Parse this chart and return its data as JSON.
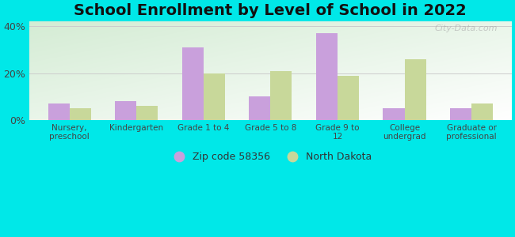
{
  "title": "School Enrollment by Level of School in 2022",
  "categories": [
    "Nursery,\npreschool",
    "Kindergarten",
    "Grade 1 to 4",
    "Grade 5 to 8",
    "Grade 9 to\n12",
    "College\nundergrad",
    "Graduate or\nprofessional"
  ],
  "zip_values": [
    7.0,
    8.0,
    31.0,
    10.0,
    37.0,
    5.0,
    5.0
  ],
  "nd_values": [
    5.0,
    6.0,
    20.0,
    21.0,
    19.0,
    26.0,
    7.0
  ],
  "zip_color": "#c9a0dc",
  "nd_color": "#c8d89a",
  "zip_label": "Zip code 58356",
  "nd_label": "North Dakota",
  "ylim": [
    0,
    42
  ],
  "yticks": [
    0,
    20,
    40
  ],
  "ytick_labels": [
    "0%",
    "20%",
    "40%"
  ],
  "bg_outer": "#00e8e8",
  "bg_plot_top_left": "#d4ecd4",
  "bg_plot_bottom_right": "#ffffff",
  "title_fontsize": 14,
  "watermark": "City-Data.com"
}
